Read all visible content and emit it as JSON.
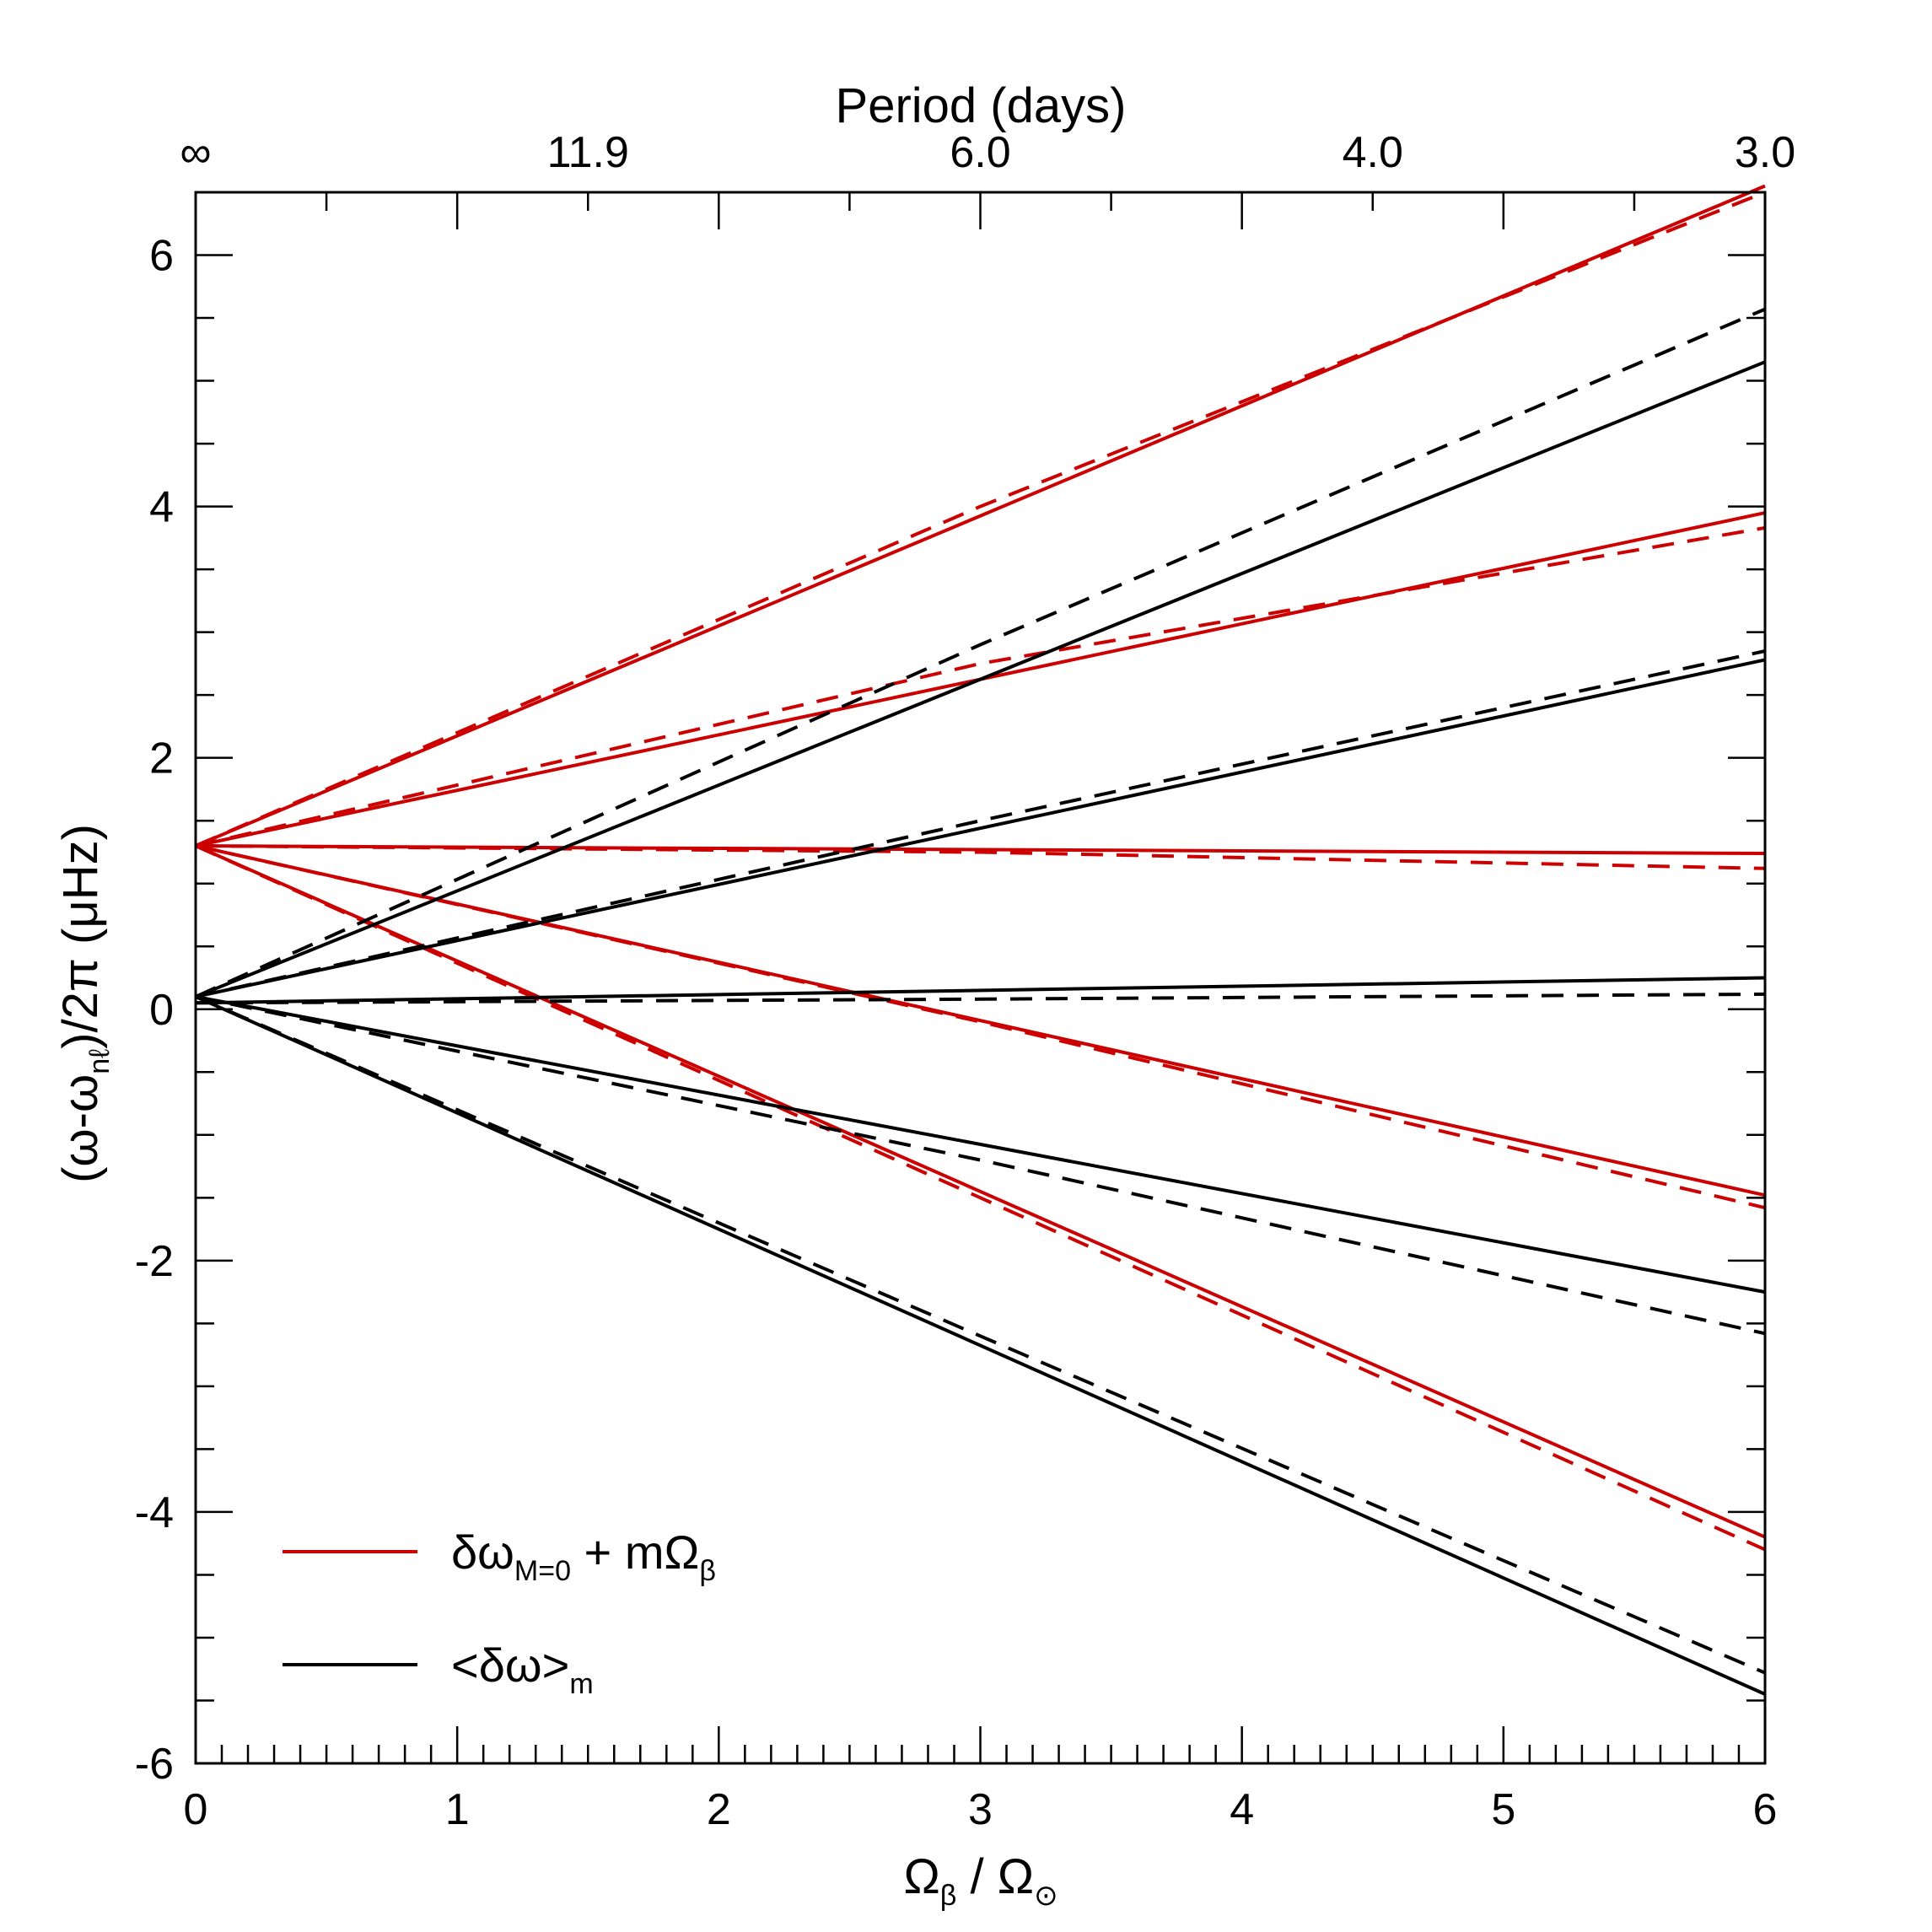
{
  "chart_data": {
    "type": "line",
    "xlabel": {
      "main": "Ω",
      "sub": "β",
      "rest": " / Ω",
      "sub2": "⊙"
    },
    "ylabel": {
      "pre": "(ω-ω",
      "sub": "nℓ",
      "post": ")/2π (μHz)"
    },
    "top_axis_title": "Period (days)",
    "xlim": [
      0,
      6
    ],
    "ylim": [
      -6,
      6.5
    ],
    "x_ticks": [
      0,
      1,
      2,
      3,
      4,
      5,
      6
    ],
    "x_tick_labels": [
      "0",
      "1",
      "2",
      "3",
      "4",
      "5",
      "6"
    ],
    "y_ticks": [
      -6,
      -4,
      -2,
      0,
      2,
      4,
      6
    ],
    "y_tick_labels": [
      "-6",
      "-4",
      "-2",
      "0",
      "2",
      "4",
      "6"
    ],
    "top_ticks": [
      0,
      1.0,
      2.0,
      3.0,
      4.0,
      5.0,
      6.0
    ],
    "top_tick_labels": [
      {
        "x": 0.0,
        "label": "∞"
      },
      {
        "x": 1.5,
        "label": "11.9"
      },
      {
        "x": 3.0,
        "label": "6.0"
      },
      {
        "x": 4.5,
        "label": "4.0"
      },
      {
        "x": 6.0,
        "label": "3.0"
      }
    ],
    "legend": [
      {
        "color": "#cc0000",
        "main": "δω",
        "sub": "M=0",
        "mid": " + mΩ",
        "sub2": "β"
      },
      {
        "color": "#000000",
        "main": "<δω>",
        "sub": "m",
        "mid": "",
        "sub2": ""
      }
    ],
    "series": [
      {
        "name": "red m=+2 solid",
        "color": "#cc0000",
        "dash": false,
        "x": [
          0,
          6
        ],
        "y": [
          1.3,
          6.55
        ]
      },
      {
        "name": "red m=+2 dashed",
        "color": "#cc0000",
        "dash": true,
        "x": [
          0,
          3,
          6
        ],
        "y": [
          1.3,
          4.0,
          6.5
        ]
      },
      {
        "name": "red m=+1 solid",
        "color": "#cc0000",
        "dash": false,
        "x": [
          0,
          6
        ],
        "y": [
          1.3,
          3.95
        ]
      },
      {
        "name": "red m=+1 dashed",
        "color": "#cc0000",
        "dash": true,
        "x": [
          0,
          3,
          6
        ],
        "y": [
          1.3,
          2.75,
          3.83
        ]
      },
      {
        "name": "red m=0 solid",
        "color": "#cc0000",
        "dash": false,
        "x": [
          0,
          6
        ],
        "y": [
          1.3,
          1.24
        ]
      },
      {
        "name": "red m=0 dashed",
        "color": "#cc0000",
        "dash": true,
        "x": [
          0,
          3,
          6
        ],
        "y": [
          1.3,
          1.25,
          1.12
        ]
      },
      {
        "name": "red m=-1 solid",
        "color": "#cc0000",
        "dash": false,
        "x": [
          0,
          6
        ],
        "y": [
          1.3,
          -1.48
        ]
      },
      {
        "name": "red m=-1 dashed",
        "color": "#cc0000",
        "dash": true,
        "x": [
          0,
          3,
          6
        ],
        "y": [
          1.3,
          -0.1,
          -1.58
        ]
      },
      {
        "name": "red m=-2 solid",
        "color": "#cc0000",
        "dash": false,
        "x": [
          0,
          6
        ],
        "y": [
          1.3,
          -4.2
        ]
      },
      {
        "name": "red m=-2 dashed",
        "color": "#cc0000",
        "dash": true,
        "x": [
          0,
          3,
          6
        ],
        "y": [
          1.3,
          -1.5,
          -4.3
        ]
      },
      {
        "name": "black m=+2 solid",
        "color": "#000000",
        "dash": false,
        "x": [
          0,
          6
        ],
        "y": [
          0.1,
          5.15
        ]
      },
      {
        "name": "black m=+2 dashed",
        "color": "#000000",
        "dash": true,
        "x": [
          0,
          3,
          6
        ],
        "y": [
          0.1,
          2.9,
          5.57
        ]
      },
      {
        "name": "black m=+1 solid",
        "color": "#000000",
        "dash": false,
        "x": [
          0,
          6
        ],
        "y": [
          0.1,
          2.78
        ]
      },
      {
        "name": "black m=+1 dashed",
        "color": "#000000",
        "dash": true,
        "x": [
          0,
          3,
          6
        ],
        "y": [
          0.1,
          1.5,
          2.85
        ]
      },
      {
        "name": "black m=0 solid",
        "color": "#000000",
        "dash": false,
        "x": [
          0,
          6
        ],
        "y": [
          0.05,
          0.25
        ]
      },
      {
        "name": "black m=0 dashed",
        "color": "#000000",
        "dash": true,
        "x": [
          0,
          3,
          6
        ],
        "y": [
          0.05,
          0.08,
          0.12
        ]
      },
      {
        "name": "black m=-1 solid",
        "color": "#000000",
        "dash": false,
        "x": [
          0,
          6
        ],
        "y": [
          0.1,
          -2.25
        ]
      },
      {
        "name": "black m=-1 dashed",
        "color": "#000000",
        "dash": true,
        "x": [
          0,
          3,
          6
        ],
        "y": [
          0.1,
          -1.2,
          -2.58
        ]
      },
      {
        "name": "black m=-2 solid",
        "color": "#000000",
        "dash": false,
        "x": [
          0,
          6
        ],
        "y": [
          0.1,
          -5.45
        ]
      },
      {
        "name": "black m=-2 dashed",
        "color": "#000000",
        "dash": true,
        "x": [
          0,
          3,
          6
        ],
        "y": [
          0.1,
          -2.6,
          -5.28
        ]
      }
    ]
  }
}
